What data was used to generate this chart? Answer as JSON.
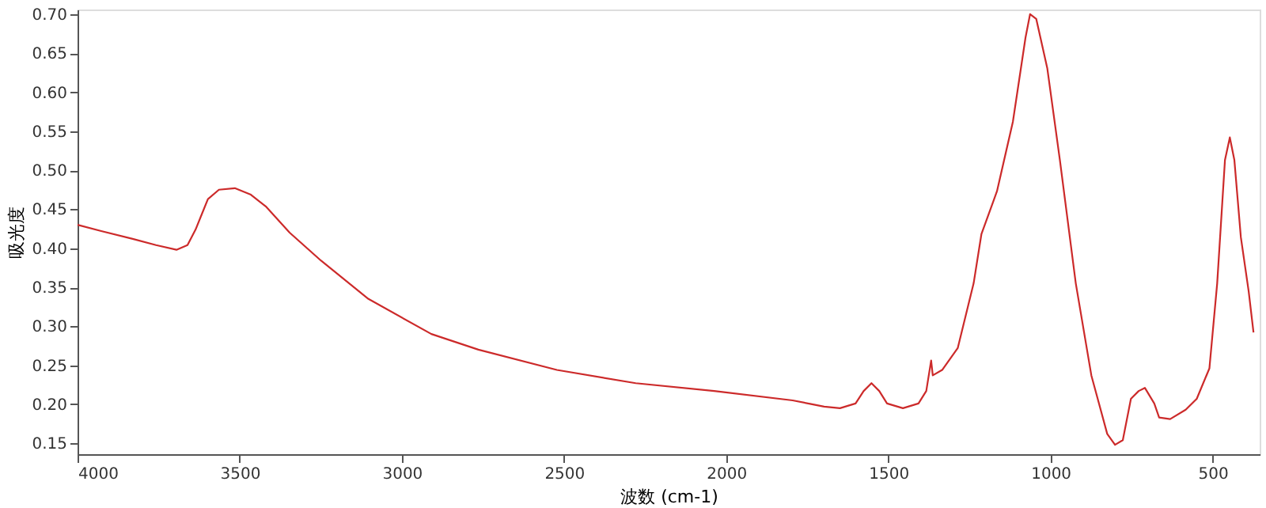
{
  "chart_data": {
    "type": "line",
    "xlabel": "波数 (cm-1)",
    "ylabel": "吸光度",
    "xlim": [
      4000,
      355
    ],
    "ylim": [
      0.136,
      0.706
    ],
    "xticks": [
      4000,
      3500,
      3000,
      2500,
      2000,
      1500,
      1000,
      500
    ],
    "yticks": [
      {
        "value": 0.15,
        "label": "0.15"
      },
      {
        "value": 0.2,
        "label": "0.20"
      },
      {
        "value": 0.25,
        "label": "0.25"
      },
      {
        "value": 0.3,
        "label": "0.30"
      },
      {
        "value": 0.35,
        "label": "0.35"
      },
      {
        "value": 0.4,
        "label": "0.40"
      },
      {
        "value": 0.45,
        "label": "0.45"
      },
      {
        "value": 0.5,
        "label": "0.50"
      },
      {
        "value": 0.55,
        "label": "0.55"
      },
      {
        "value": 0.6,
        "label": "0.60"
      },
      {
        "value": 0.65,
        "label": "0.65"
      },
      {
        "value": 0.7,
        "label": "0.70"
      }
    ],
    "grid": false,
    "marker": "none",
    "line_style": "solid",
    "series": [
      {
        "color": "#cc2a2a",
        "x": [
          4000,
          3927,
          3830,
          3758,
          3695,
          3661,
          3636,
          3598,
          3564,
          3515,
          3467,
          3418,
          3346,
          3249,
          3103,
          2909,
          2764,
          2522,
          2279,
          2037,
          1795,
          1698,
          1649,
          1601,
          1576,
          1552,
          1528,
          1504,
          1455,
          1407,
          1383,
          1368,
          1363,
          1334,
          1286,
          1237,
          1213,
          1165,
          1116,
          1077,
          1063,
          1044,
          1010,
          971,
          922,
          874,
          825,
          801,
          777,
          752,
          728,
          709,
          680,
          665,
          631,
          583,
          549,
          510,
          486,
          462,
          447,
          433,
          413,
          389,
          374
        ],
        "values": [
          0.43,
          0.422,
          0.412,
          0.404,
          0.398,
          0.404,
          0.424,
          0.463,
          0.475,
          0.477,
          0.469,
          0.453,
          0.42,
          0.384,
          0.335,
          0.29,
          0.27,
          0.244,
          0.227,
          0.217,
          0.205,
          0.197,
          0.195,
          0.201,
          0.217,
          0.227,
          0.217,
          0.201,
          0.195,
          0.201,
          0.217,
          0.256,
          0.237,
          0.244,
          0.272,
          0.355,
          0.418,
          0.473,
          0.562,
          0.67,
          0.7,
          0.694,
          0.631,
          0.513,
          0.355,
          0.237,
          0.162,
          0.148,
          0.154,
          0.207,
          0.217,
          0.221,
          0.201,
          0.183,
          0.181,
          0.193,
          0.207,
          0.246,
          0.355,
          0.513,
          0.542,
          0.513,
          0.414,
          0.345,
          0.292
        ]
      }
    ]
  }
}
